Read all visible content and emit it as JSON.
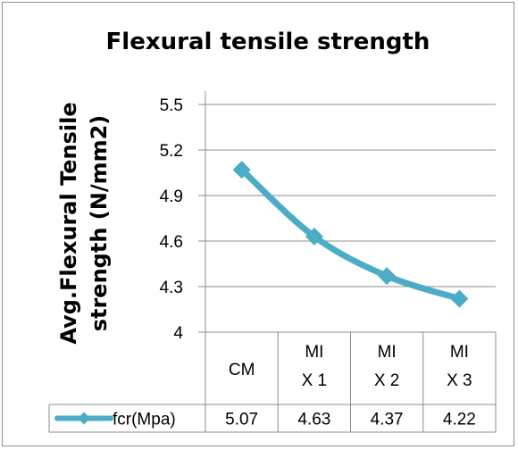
{
  "chart_data": {
    "type": "line",
    "title": "Flexural tensile strength",
    "xlabel": "",
    "ylabel_lines": [
      "Avg.Flexural Tensile",
      "strength (N/mm2)"
    ],
    "categories": [
      [
        "CM"
      ],
      [
        "MI",
        "X 1"
      ],
      [
        "MI",
        "X 2"
      ],
      [
        "MI",
        "X 3"
      ]
    ],
    "series": [
      {
        "name": "fcr(Mpa)",
        "values": [
          5.07,
          4.63,
          4.37,
          4.22
        ],
        "color": "#4bacc6",
        "table_values": [
          "5.07",
          "4.63",
          "4.37",
          "4.22"
        ]
      }
    ],
    "ylim": [
      4,
      5.5
    ],
    "yticks": [
      "4",
      "4.3",
      "4.6",
      "4.9",
      "5.2",
      "5.5"
    ],
    "grid": true,
    "legend": "data-table"
  }
}
